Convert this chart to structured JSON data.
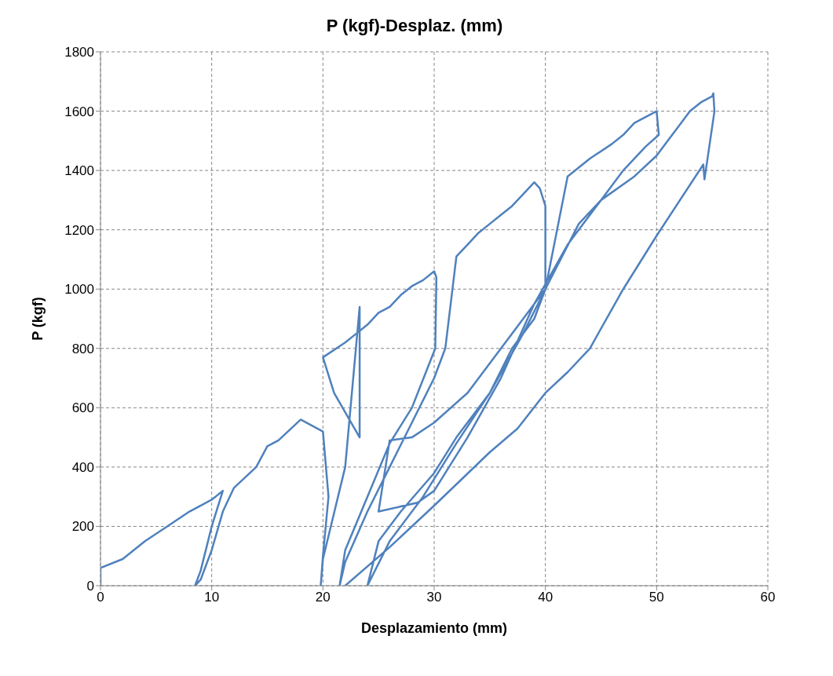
{
  "chart_data": {
    "type": "line",
    "title": "P (kgf)-Desplaz. (mm)",
    "xlabel": "Desplazamiento (mm)",
    "ylabel": "P (kgf)",
    "x": [
      0,
      0,
      2,
      4,
      6,
      8,
      10,
      11,
      10,
      9,
      8.5,
      9,
      10,
      11,
      12,
      14,
      15,
      16,
      18,
      20,
      20.5,
      20,
      19.8,
      20,
      22,
      23.3,
      23.3,
      21,
      20,
      22,
      23,
      24,
      25,
      26,
      27,
      28,
      29,
      30,
      30.2,
      30.1,
      28,
      26,
      24,
      22,
      21.5,
      22,
      24,
      26,
      28,
      30,
      31,
      32,
      33,
      34,
      35,
      36,
      37,
      38,
      39,
      39.5,
      40,
      40,
      39,
      37,
      35,
      32,
      30,
      27,
      25,
      24,
      26,
      29,
      32,
      35,
      38,
      40,
      42,
      44,
      46,
      47,
      48,
      49,
      50,
      50.2,
      49,
      47,
      45,
      43,
      40,
      37,
      35,
      33,
      30,
      28,
      26,
      25,
      28.5,
      30,
      33,
      36,
      39,
      42,
      45,
      48,
      50,
      51,
      52,
      53,
      54,
      55,
      55.1,
      55.2,
      54.5,
      54.3,
      54.2,
      50,
      47,
      44,
      42,
      40,
      37.5,
      35,
      30,
      26,
      22
    ],
    "values": [
      0,
      60,
      90,
      150,
      200,
      250,
      290,
      320,
      200,
      50,
      0,
      20,
      120,
      250,
      330,
      400,
      470,
      490,
      560,
      520,
      300,
      100,
      0,
      90,
      400,
      940,
      500,
      650,
      770,
      820,
      850,
      880,
      920,
      940,
      980,
      1010,
      1030,
      1060,
      1040,
      800,
      600,
      480,
      300,
      120,
      0,
      80,
      250,
      400,
      550,
      700,
      800,
      1110,
      1150,
      1190,
      1220,
      1250,
      1280,
      1320,
      1360,
      1340,
      1280,
      1000,
      900,
      800,
      650,
      500,
      380,
      250,
      150,
      0,
      150,
      300,
      480,
      650,
      850,
      1000,
      1380,
      1440,
      1490,
      1520,
      1560,
      1580,
      1600,
      1520,
      1480,
      1400,
      1300,
      1220,
      1000,
      850,
      750,
      650,
      550,
      500,
      490,
      250,
      280,
      320,
      500,
      700,
      950,
      1150,
      1300,
      1380,
      1450,
      1500,
      1550,
      1600,
      1630,
      1650,
      1660,
      1600,
      1420,
      1370,
      1420,
      1180,
      1000,
      800,
      720,
      650,
      530,
      450,
      270,
      130,
      0
    ],
    "color": "#4f81bd",
    "xlim": [
      0,
      60
    ],
    "xticks": [
      0,
      10,
      20,
      30,
      40,
      50,
      60
    ],
    "ylim": [
      0,
      1800
    ],
    "yticks": [
      0,
      200,
      400,
      600,
      800,
      1000,
      1200,
      1400,
      1600,
      1800
    ],
    "grid": true,
    "marker": "none",
    "line_style": "solid"
  }
}
